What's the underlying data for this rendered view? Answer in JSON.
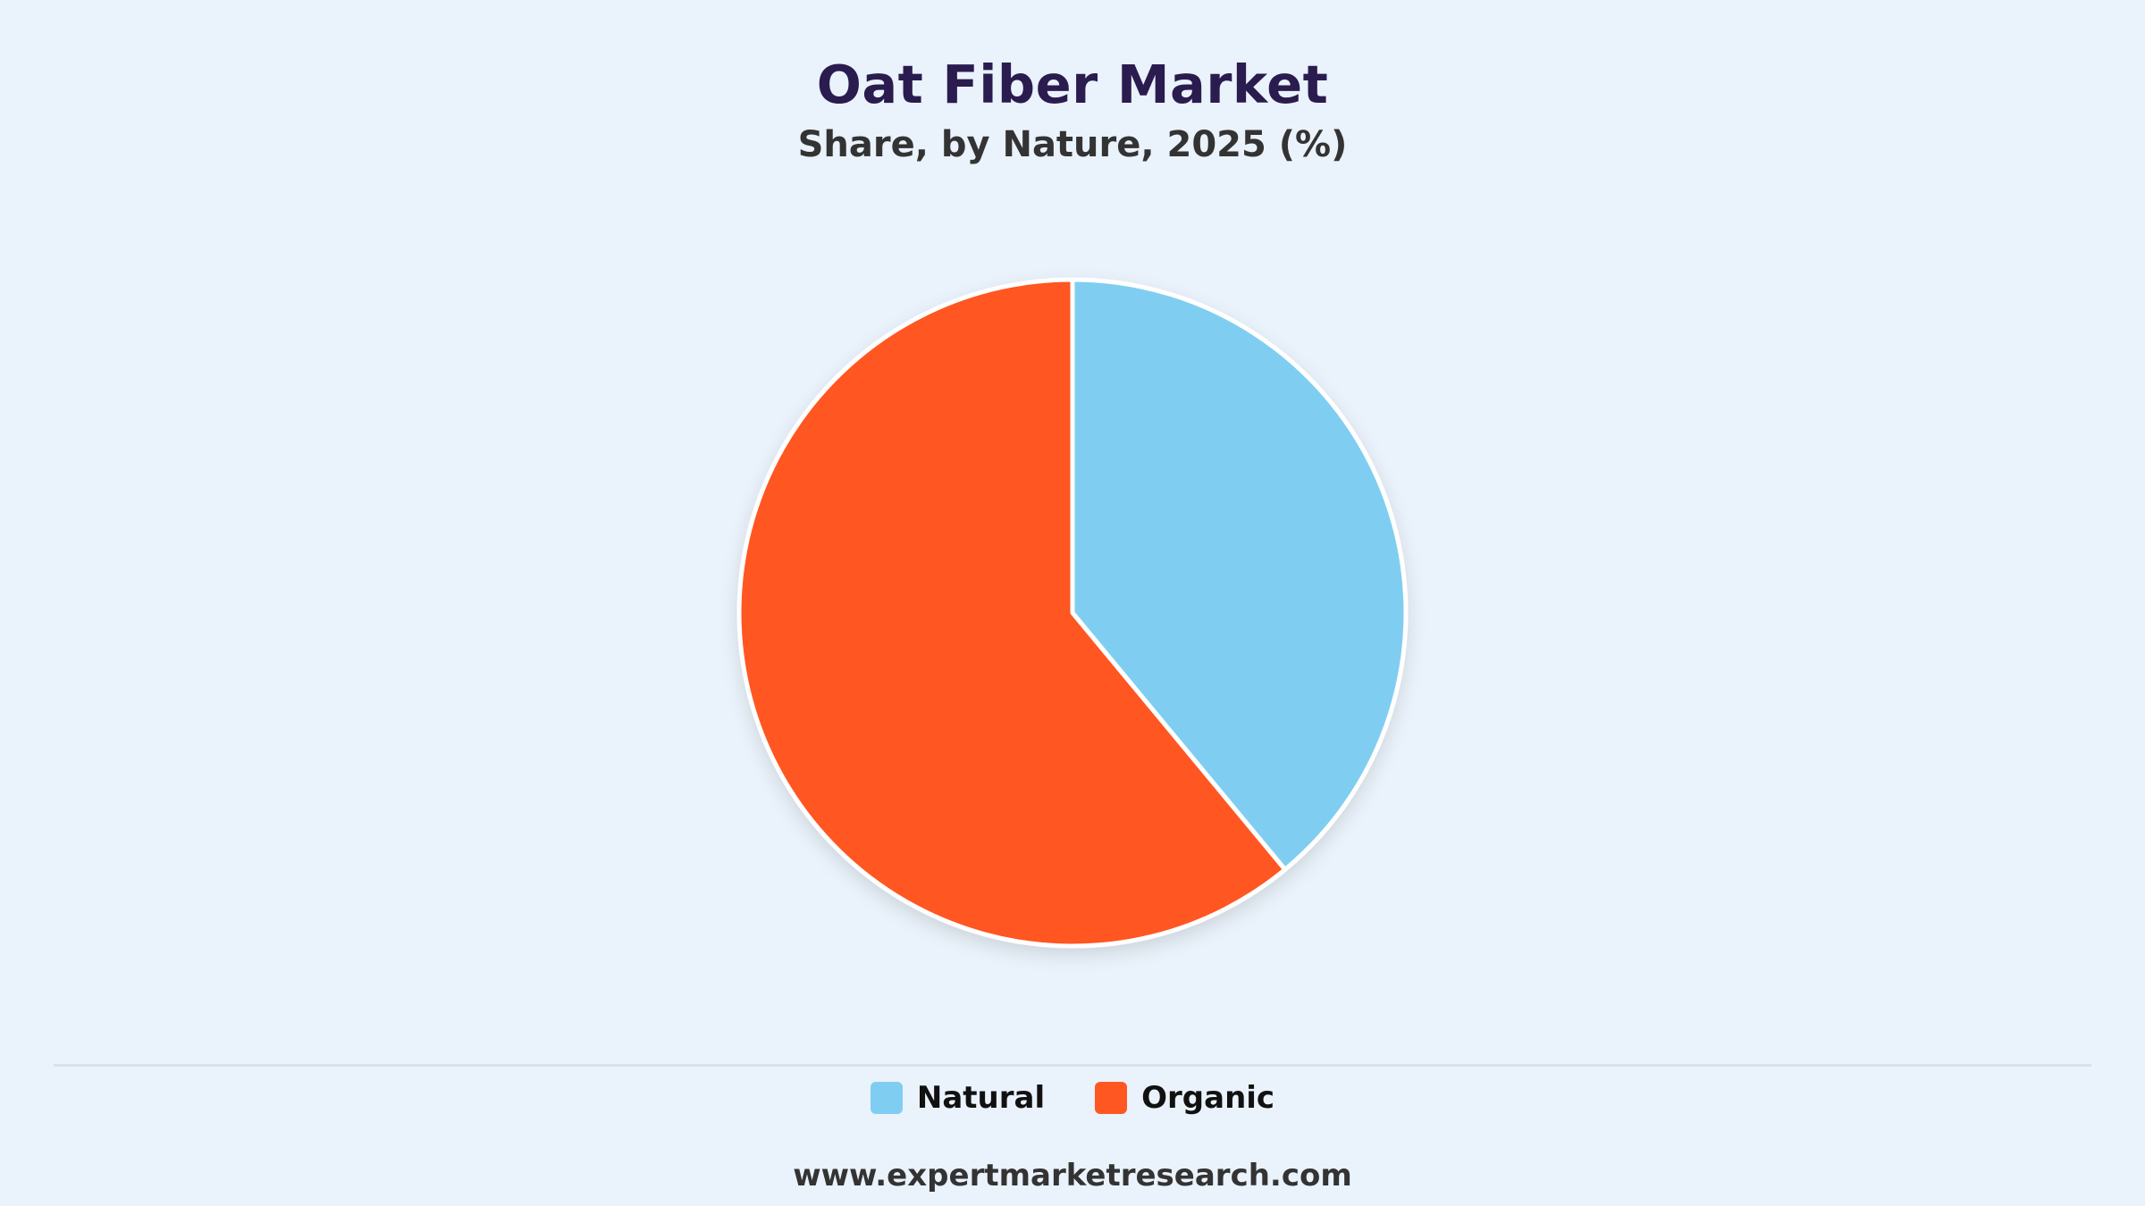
{
  "chart_data": {
    "type": "pie",
    "title": "Oat Fiber Market",
    "subtitle": "Share, by Nature, 2025 (%)",
    "categories": [
      "Natural",
      "Organic"
    ],
    "values": [
      39,
      61
    ],
    "colors": [
      "#7fcef1",
      "#ff5722"
    ],
    "legend_position": "bottom",
    "grid": false
  },
  "legend": {
    "items": [
      {
        "label": "Natural",
        "color": "#7fcef1"
      },
      {
        "label": "Organic",
        "color": "#ff5722"
      }
    ]
  },
  "source": "www.expertmarketresearch.com"
}
